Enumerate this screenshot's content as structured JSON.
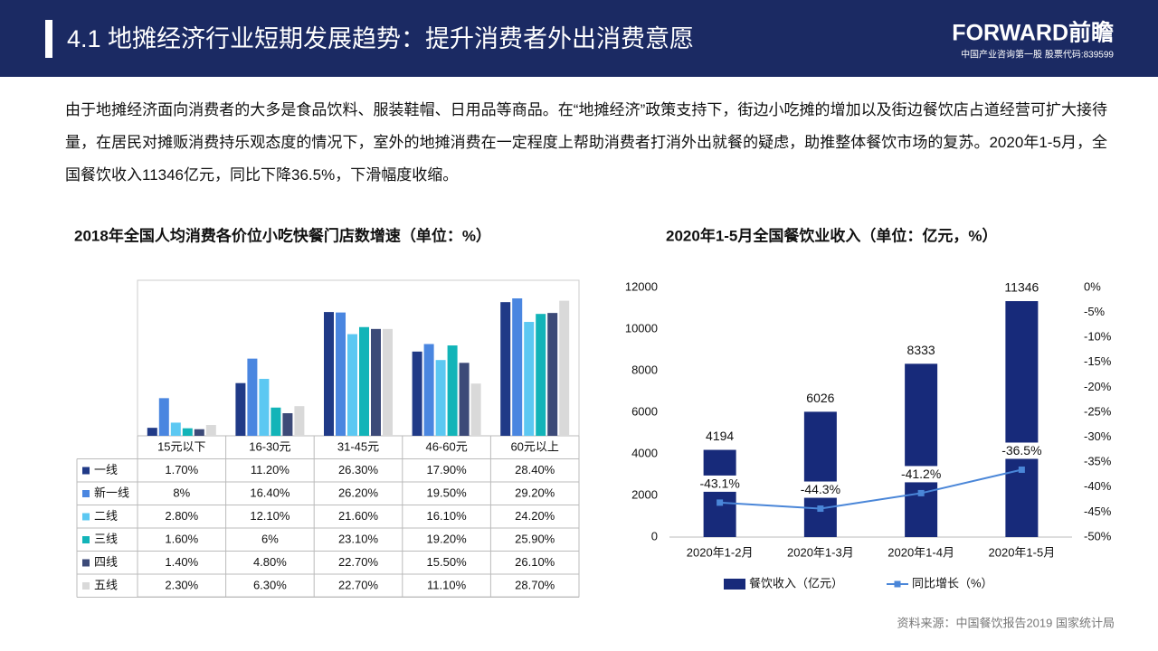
{
  "header": {
    "title": "4.1 地摊经济行业短期发展趋势：提升消费者外出消费意愿",
    "logo": "FORWARD前瞻",
    "logo_sub": "中国产业咨询第一股 股票代码:839599"
  },
  "paragraph": "由于地摊经济面向消费者的大多是食品饮料、服装鞋帽、日用品等商品。在“地摊经济”政策支持下，街边小吃摊的增加以及街边餐饮店占道经营可扩大接待量，在居民对摊贩消费持乐观态度的情况下，室外的地摊消费在一定程度上帮助消费者打消外出就餐的疑虑，助推整体餐饮市场的复苏。2020年1-5月，全国餐饮收入11346亿元，同比下降36.5%，下滑幅度收缩。",
  "source": "资料来源：中国餐饮报告2019 国家统计局",
  "chart_data": [
    {
      "type": "bar",
      "title": "2018年全国人均消费各价位小吃快餐门店数增速（单位：%）",
      "categories": [
        "15元以下",
        "16-30元",
        "31-45元",
        "46-60元",
        "60元以上"
      ],
      "series": [
        {
          "name": "一线",
          "color": "#203a87",
          "values": [
            1.7,
            11.2,
            26.3,
            17.9,
            28.4
          ],
          "value_labels": [
            "1.70%",
            "11.20%",
            "26.30%",
            "17.90%",
            "28.40%"
          ]
        },
        {
          "name": "新一线",
          "color": "#4a86e0",
          "values": [
            8,
            16.4,
            26.2,
            19.5,
            29.2
          ],
          "value_labels": [
            "8%",
            "16.40%",
            "26.20%",
            "19.50%",
            "29.20%"
          ]
        },
        {
          "name": "二线",
          "color": "#5cc8f2",
          "values": [
            2.8,
            12.1,
            21.6,
            16.1,
            24.2
          ],
          "value_labels": [
            "2.80%",
            "12.10%",
            "21.60%",
            "16.10%",
            "24.20%"
          ]
        },
        {
          "name": "三线",
          "color": "#12b4b8",
          "values": [
            1.6,
            6,
            23.1,
            19.2,
            25.9
          ],
          "value_labels": [
            "1.60%",
            "6%",
            "23.10%",
            "19.20%",
            "25.90%"
          ]
        },
        {
          "name": "四线",
          "color": "#3c4a78",
          "values": [
            1.4,
            4.8,
            22.7,
            15.5,
            26.1
          ],
          "value_labels": [
            "1.40%",
            "4.80%",
            "22.70%",
            "15.50%",
            "26.10%"
          ]
        },
        {
          "name": "五线",
          "color": "#d9d9d9",
          "values": [
            2.3,
            6.3,
            22.7,
            11.1,
            28.7
          ],
          "value_labels": [
            "2.30%",
            "6.30%",
            "22.70%",
            "11.10%",
            "28.70%"
          ]
        }
      ]
    },
    {
      "type": "bar-line",
      "title": "2020年1-5月全国餐饮业收入（单位：亿元，%）",
      "categories": [
        "2020年1-2月",
        "2020年1-3月",
        "2020年1-4月",
        "2020年1-5月"
      ],
      "series": [
        {
          "name": "餐饮收入（亿元）",
          "color": "#172a7a",
          "values": [
            4194,
            6026,
            8333,
            11346
          ]
        },
        {
          "name": "同比增长（%）",
          "color": "#4a86d8",
          "axis": "y2",
          "values": [
            -43.1,
            -44.3,
            -41.2,
            -36.5
          ],
          "value_labels": [
            "-43.1%",
            "-44.3%",
            "-41.2%",
            "-36.5%"
          ]
        }
      ],
      "ylim": [
        0,
        12000
      ],
      "yticks": [
        0,
        2000,
        4000,
        6000,
        8000,
        10000,
        12000
      ],
      "y2lim": [
        -50,
        0
      ],
      "y2ticks": [
        {
          "value": 0,
          "label": "0%"
        },
        {
          "value": -5,
          "label": "-5%"
        },
        {
          "value": -10,
          "label": "-10%"
        },
        {
          "value": -15,
          "label": "-15%"
        },
        {
          "value": -20,
          "label": "-20%"
        },
        {
          "value": -25,
          "label": "-25%"
        },
        {
          "value": -30,
          "label": "-30%"
        },
        {
          "value": -35,
          "label": "-35%"
        },
        {
          "value": -40,
          "label": "-40%"
        },
        {
          "value": -45,
          "label": "-45%"
        },
        {
          "value": -50,
          "label": "-50%"
        }
      ],
      "legend": "bottom"
    }
  ]
}
